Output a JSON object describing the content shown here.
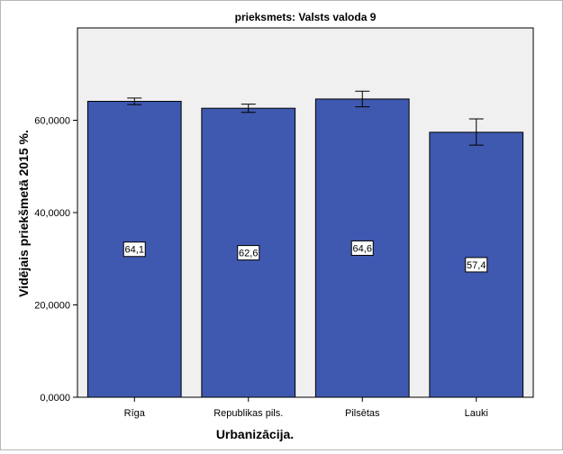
{
  "chart_data": {
    "type": "bar",
    "title": "prieksmets: Valsts valoda 9",
    "xlabel": "Urbanizācija.",
    "ylabel": "Vidējais priekšmetā 2015 %.",
    "categories": [
      "Rīga",
      "Republikas pils.",
      "Pilsētas",
      "Lauki"
    ],
    "values": [
      64.1,
      62.6,
      64.6,
      57.4
    ],
    "value_labels": [
      "64,1",
      "62,6",
      "64,6",
      "57,4"
    ],
    "error_low": [
      63.4,
      61.7,
      62.9,
      54.6
    ],
    "error_high": [
      64.8,
      63.5,
      66.3,
      60.3
    ],
    "ylim": [
      0,
      80
    ],
    "yticks": [
      0,
      20,
      40,
      60
    ],
    "ytick_labels": [
      "0,0000",
      "20,0000",
      "40,0000",
      "60,0000"
    ],
    "grid": false,
    "colors": {
      "bar_fill": "#3f59b0",
      "bar_stroke": "#000000",
      "error_bar": "#000000",
      "plot_background": "#f0f0f0"
    }
  }
}
